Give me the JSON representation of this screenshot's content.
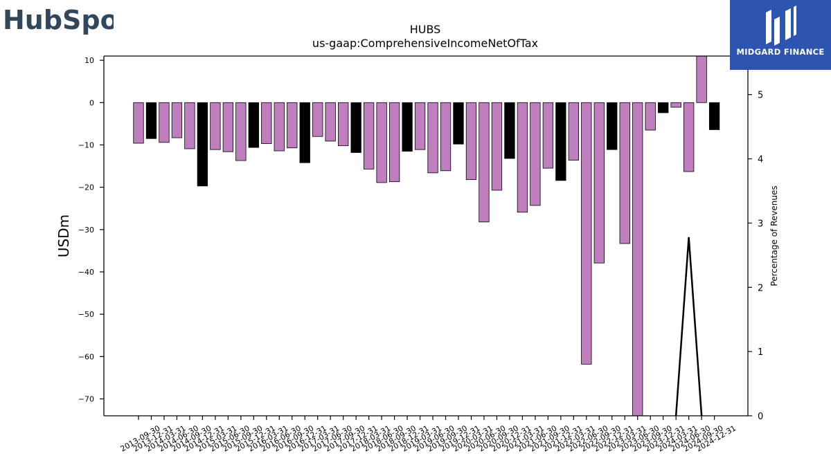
{
  "brand": {
    "left_logo_text": "HubSpot",
    "right_logo_text": "MIDGARD FINANCE"
  },
  "chart_data": {
    "type": "bar",
    "title": "HUBS",
    "subtitle": "us-gaap:ComprehensiveIncomeNetOfTax",
    "ylabel": "USDm",
    "y2label": "Percentage of Revenues",
    "ylim": [
      -74,
      11
    ],
    "y2lim": [
      0,
      5.6
    ],
    "yticks": [
      10,
      0,
      -10,
      -20,
      -30,
      -40,
      -50,
      -60,
      -70
    ],
    "y2ticks": [
      0,
      1,
      2,
      3,
      4,
      5
    ],
    "colors": {
      "quarter": "#bf7fbf",
      "year_end": "#000000",
      "line": "#000000"
    },
    "categories": [
      "2013-09-30",
      "2013-12-31",
      "2014-03-31",
      "2014-06-30",
      "2014-09-30",
      "2014-12-31",
      "2015-03-31",
      "2015-06-30",
      "2015-09-30",
      "2015-12-31",
      "2016-03-31",
      "2016-06-30",
      "2016-09-30",
      "2016-12-31",
      "2017-03-31",
      "2017-06-30",
      "2017-09-30",
      "2017-12-31",
      "2018-03-31",
      "2018-06-30",
      "2018-09-30",
      "2018-12-31",
      "2019-03-31",
      "2019-06-30",
      "2019-09-30",
      "2019-12-31",
      "2020-03-31",
      "2020-06-30",
      "2020-09-30",
      "2020-12-31",
      "2021-03-31",
      "2021-06-30",
      "2021-09-30",
      "2021-12-31",
      "2022-03-31",
      "2022-06-30",
      "2022-09-30",
      "2022-12-31",
      "2023-03-31",
      "2023-06-30",
      "2023-09-30",
      "2023-12-31",
      "2024-03-31",
      "2024-06-30",
      "2024-09-30",
      "2024-12-31"
    ],
    "values": [
      -9.6,
      -8.5,
      -9.4,
      -8.3,
      -10.9,
      -19.7,
      -11.1,
      -11.6,
      -13.7,
      -10.6,
      -9.7,
      -11.4,
      -10.7,
      -14.2,
      -8.0,
      -9.1,
      -10.2,
      -11.8,
      -15.7,
      -18.9,
      -18.7,
      -11.5,
      -11.1,
      -16.6,
      -16.1,
      -9.8,
      -18.2,
      -28.2,
      -20.7,
      -13.2,
      -25.9,
      -24.3,
      -15.5,
      -18.4,
      -13.6,
      -61.8,
      -37.9,
      -11.1,
      -33.3,
      -75.0,
      -6.5,
      -2.4,
      -1.1,
      -16.3,
      11.0,
      -6.4
    ],
    "year_end_flags": [
      0,
      1,
      0,
      0,
      0,
      1,
      0,
      0,
      0,
      1,
      0,
      0,
      0,
      1,
      0,
      0,
      0,
      1,
      0,
      0,
      0,
      1,
      0,
      0,
      0,
      1,
      0,
      0,
      0,
      1,
      0,
      0,
      0,
      1,
      0,
      0,
      0,
      1,
      0,
      0,
      0,
      1,
      0,
      0,
      0,
      1
    ],
    "pct_line": {
      "x_index": [
        42,
        43,
        44
      ],
      "values": [
        0,
        2.78,
        0
      ]
    }
  }
}
